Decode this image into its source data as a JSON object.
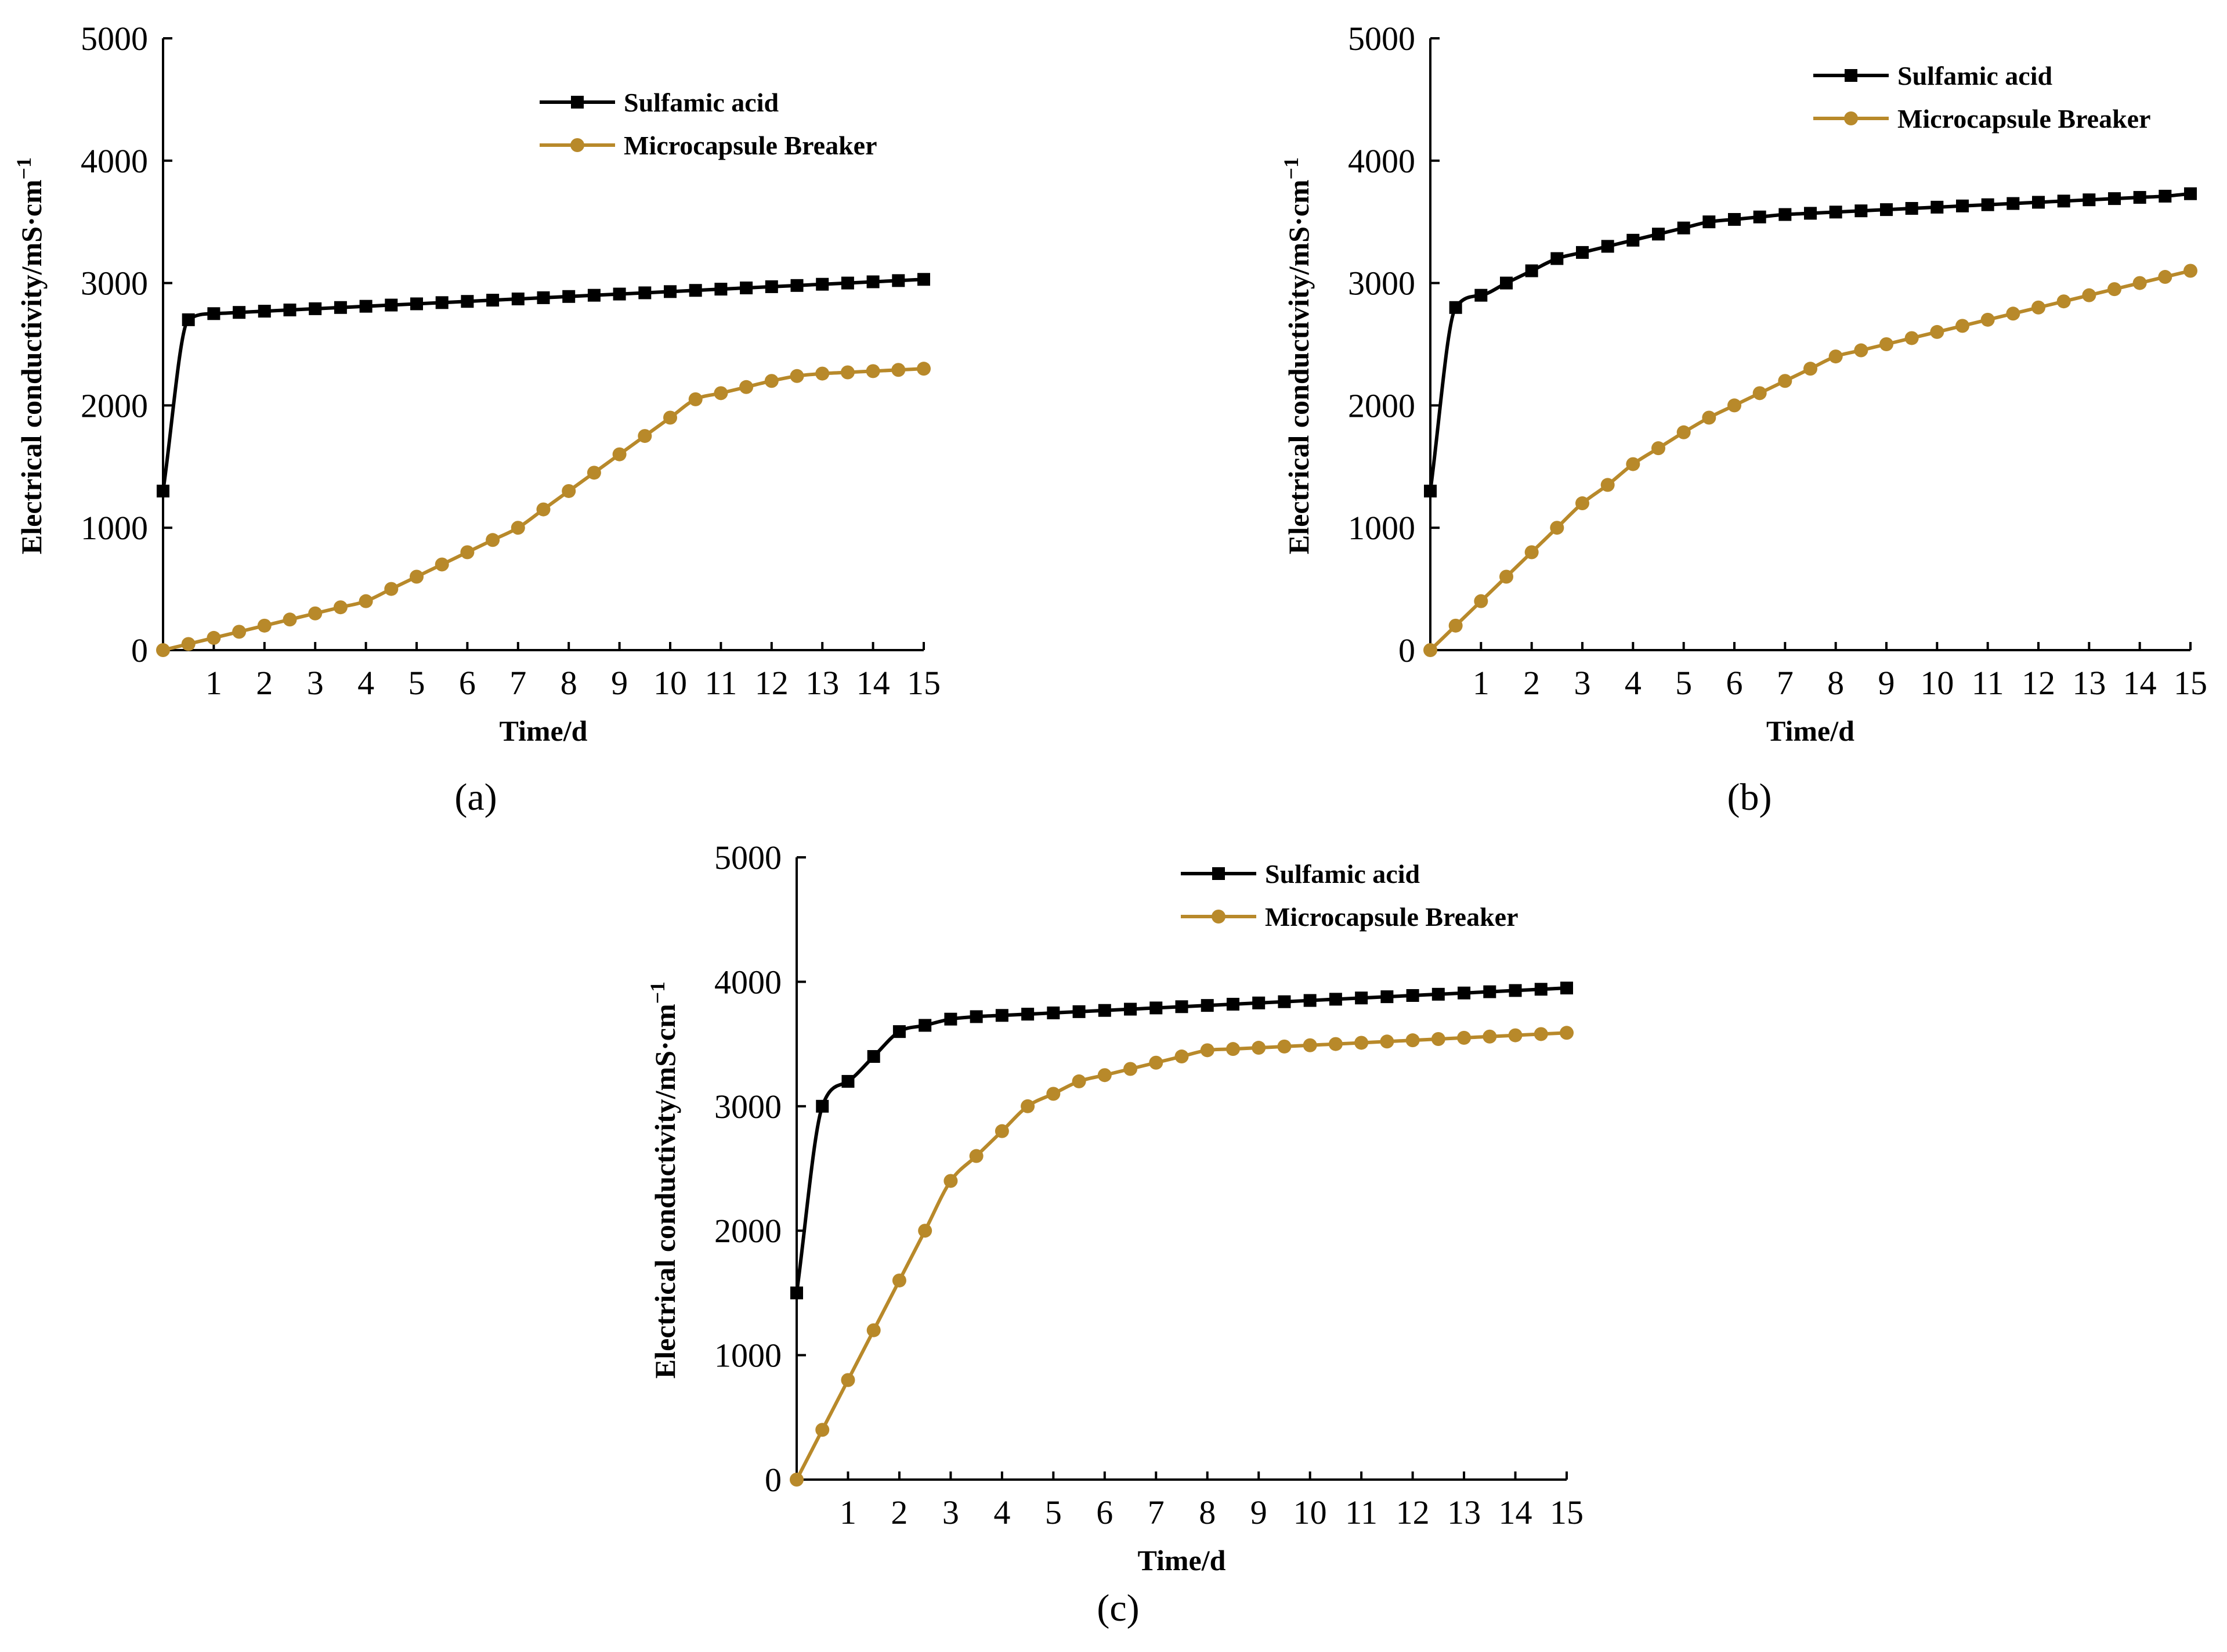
{
  "colors": {
    "sulfamic": "#000000",
    "microcapsule": "#b8892a"
  },
  "chart_data": [
    {
      "type": "line",
      "panel_label": "(a)",
      "xlabel": "Time/d",
      "ylabel": "Electrical conductivity/mS·cm",
      "ylabel_sup": "−1",
      "xlim": [
        0,
        15
      ],
      "ylim": [
        0,
        5000
      ],
      "x_ticks": [
        "1",
        "2",
        "3",
        "4",
        "5",
        "6",
        "7",
        "8",
        "9",
        "10",
        "11",
        "12",
        "13",
        "14",
        "15"
      ],
      "y_ticks": [
        "0",
        "1000",
        "2000",
        "3000",
        "4000",
        "5000"
      ],
      "x": [
        0,
        0.5,
        1,
        1.5,
        2,
        2.5,
        3,
        3.5,
        4,
        4.5,
        5,
        5.5,
        6,
        6.5,
        7,
        7.5,
        8,
        8.5,
        9,
        9.5,
        10,
        10.5,
        11,
        11.5,
        12,
        12.5,
        13,
        13.5,
        14,
        14.5,
        15
      ],
      "series": [
        {
          "name": "Sulfamic acid",
          "marker": "square",
          "values": [
            1300,
            2700,
            2750,
            2760,
            2770,
            2780,
            2790,
            2800,
            2810,
            2820,
            2830,
            2840,
            2850,
            2860,
            2870,
            2880,
            2890,
            2900,
            2910,
            2920,
            2930,
            2940,
            2950,
            2960,
            2970,
            2980,
            2990,
            3000,
            3010,
            3020,
            3030
          ]
        },
        {
          "name": "Microcapsule Breaker",
          "marker": "circle",
          "values": [
            0,
            50,
            100,
            150,
            200,
            250,
            300,
            350,
            400,
            500,
            600,
            700,
            800,
            900,
            1000,
            1150,
            1300,
            1450,
            1600,
            1750,
            1900,
            2050,
            2100,
            2150,
            2200,
            2240,
            2260,
            2270,
            2280,
            2290,
            2300
          ]
        }
      ],
      "legend": [
        "Sulfamic acid",
        "Microcapsule Breaker"
      ]
    },
    {
      "type": "line",
      "panel_label": "(b)",
      "xlabel": "Time/d",
      "ylabel": "Electrical conductivity/mS·cm",
      "ylabel_sup": "−1",
      "xlim": [
        0,
        15
      ],
      "ylim": [
        0,
        5000
      ],
      "x_ticks": [
        "1",
        "2",
        "3",
        "4",
        "5",
        "6",
        "7",
        "8",
        "9",
        "10",
        "11",
        "12",
        "13",
        "14",
        "15"
      ],
      "y_ticks": [
        "0",
        "1000",
        "2000",
        "3000",
        "4000",
        "5000"
      ],
      "x": [
        0,
        0.5,
        1,
        1.5,
        2,
        2.5,
        3,
        3.5,
        4,
        4.5,
        5,
        5.5,
        6,
        6.5,
        7,
        7.5,
        8,
        8.5,
        9,
        9.5,
        10,
        10.5,
        11,
        11.5,
        12,
        12.5,
        13,
        13.5,
        14,
        14.5,
        15
      ],
      "series": [
        {
          "name": "Sulfamic acid",
          "marker": "square",
          "values": [
            1300,
            2800,
            2900,
            3000,
            3100,
            3200,
            3250,
            3300,
            3350,
            3400,
            3450,
            3500,
            3520,
            3540,
            3560,
            3570,
            3580,
            3590,
            3600,
            3610,
            3620,
            3630,
            3640,
            3650,
            3660,
            3670,
            3680,
            3690,
            3700,
            3710,
            3730
          ]
        },
        {
          "name": "Microcapsule Breaker",
          "marker": "circle",
          "values": [
            0,
            200,
            400,
            600,
            800,
            1000,
            1200,
            1350,
            1520,
            1650,
            1780,
            1900,
            2000,
            2100,
            2200,
            2300,
            2400,
            2450,
            2500,
            2550,
            2600,
            2650,
            2700,
            2750,
            2800,
            2850,
            2900,
            2950,
            3000,
            3050,
            3100
          ]
        }
      ],
      "legend": [
        "Sulfamic acid",
        "Microcapsule Breaker"
      ]
    },
    {
      "type": "line",
      "panel_label": "(c)",
      "xlabel": "Time/d",
      "ylabel": "Electrical conductivity/mS·cm",
      "ylabel_sup": "−1",
      "xlim": [
        0,
        15
      ],
      "ylim": [
        0,
        5000
      ],
      "x_ticks": [
        "1",
        "2",
        "3",
        "4",
        "5",
        "6",
        "7",
        "8",
        "9",
        "10",
        "11",
        "12",
        "13",
        "14",
        "15"
      ],
      "y_ticks": [
        "0",
        "1000",
        "2000",
        "3000",
        "4000",
        "5000"
      ],
      "x": [
        0,
        0.5,
        1,
        1.5,
        2,
        2.5,
        3,
        3.5,
        4,
        4.5,
        5,
        5.5,
        6,
        6.5,
        7,
        7.5,
        8,
        8.5,
        9,
        9.5,
        10,
        10.5,
        11,
        11.5,
        12,
        12.5,
        13,
        13.5,
        14,
        14.5,
        15
      ],
      "series": [
        {
          "name": "Sulfamic acid",
          "marker": "square",
          "values": [
            1500,
            3000,
            3200,
            3400,
            3600,
            3650,
            3700,
            3720,
            3730,
            3740,
            3750,
            3760,
            3770,
            3780,
            3790,
            3800,
            3810,
            3820,
            3830,
            3840,
            3850,
            3860,
            3870,
            3880,
            3890,
            3900,
            3910,
            3920,
            3930,
            3940,
            3950
          ]
        },
        {
          "name": "Microcapsule Breaker",
          "marker": "circle",
          "values": [
            0,
            400,
            800,
            1200,
            1600,
            2000,
            2400,
            2600,
            2800,
            3000,
            3100,
            3200,
            3250,
            3300,
            3350,
            3400,
            3450,
            3460,
            3470,
            3480,
            3490,
            3500,
            3510,
            3520,
            3530,
            3540,
            3550,
            3560,
            3570,
            3580,
            3590
          ]
        }
      ],
      "legend": [
        "Sulfamic acid",
        "Microcapsule Breaker"
      ]
    }
  ]
}
